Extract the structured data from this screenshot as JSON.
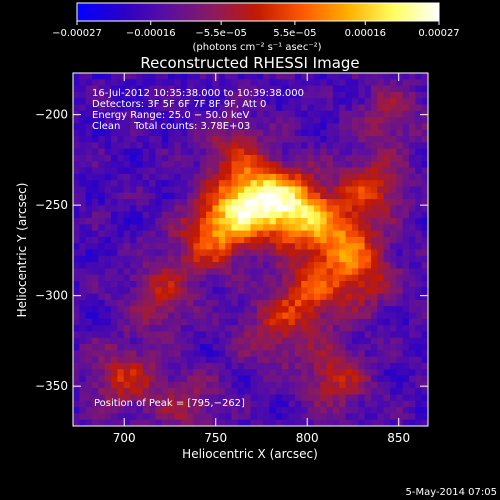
{
  "chart_data": {
    "type": "heatmap",
    "title": "Reconstructed RHESSI Image",
    "xlabel": "Heliocentric X (arcsec)",
    "ylabel": "Heliocentric Y (arcsec)",
    "xlim": [
      672,
      866
    ],
    "ylim": [
      -372,
      -177
    ],
    "x_ticks": [
      700,
      750,
      800,
      850
    ],
    "y_ticks": [
      -200,
      -250,
      -300,
      -350
    ],
    "x_tick_labels": [
      "700",
      "750",
      "800",
      "850"
    ],
    "y_tick_labels": [
      "−200",
      "−250",
      "−300",
      "−350"
    ],
    "colorbar": {
      "min": -0.00027,
      "max": 0.00027,
      "tick_values": [
        -0.00027,
        -0.00016,
        -5.5e-05,
        5.5e-05,
        0.00016,
        0.00027
      ],
      "tick_labels": [
        "−0.00027",
        "−0.00016",
        "−5.5e−05",
        "5.5e−05",
        "0.00016",
        "0.00027"
      ],
      "unit_label": "(photons cm⁻² s⁻¹ asec⁻²)",
      "colormap": [
        "#0000ff",
        "#2a00c8",
        "#5a0fa0",
        "#8a1a60",
        "#c41a00",
        "#ff5a00",
        "#ffb000",
        "#ffff60",
        "#ffffff"
      ]
    },
    "annotations": {
      "time_range": "16-Jul-2012 10:35:38.000 to 10:39:38.000",
      "detectors": "Detectors: 3F 5F 6F 7F 8F 9F, Att 0",
      "energy_range": "Energy Range: 25.0 − 50.0 keV",
      "clean_label": "Clean",
      "total_counts": "Total counts: 3.78E+03",
      "peak_position": "Position of Peak = [795,−262]"
    },
    "peak": {
      "x": 795,
      "y": -262
    },
    "sources": [
      {
        "x": 795,
        "y": -253,
        "intensity": 1.0
      },
      {
        "x": 775,
        "y": -245,
        "intensity": 0.85
      },
      {
        "x": 760,
        "y": -255,
        "intensity": 0.75
      },
      {
        "x": 818,
        "y": -270,
        "intensity": 0.7
      },
      {
        "x": 745,
        "y": -270,
        "intensity": 0.55
      },
      {
        "x": 800,
        "y": -300,
        "intensity": 0.6
      },
      {
        "x": 835,
        "y": -240,
        "intensity": 0.55
      },
      {
        "x": 830,
        "y": -290,
        "intensity": 0.5
      },
      {
        "x": 720,
        "y": -300,
        "intensity": 0.45
      },
      {
        "x": 780,
        "y": -320,
        "intensity": 0.4
      },
      {
        "x": 700,
        "y": -345,
        "intensity": 0.5
      },
      {
        "x": 815,
        "y": -345,
        "intensity": 0.5
      },
      {
        "x": 735,
        "y": -360,
        "intensity": 0.35
      },
      {
        "x": 760,
        "y": -220,
        "intensity": 0.4
      },
      {
        "x": 845,
        "y": -200,
        "intensity": 0.35
      }
    ]
  },
  "footer": {
    "date_stamp": "5-May-2014 07:05"
  }
}
